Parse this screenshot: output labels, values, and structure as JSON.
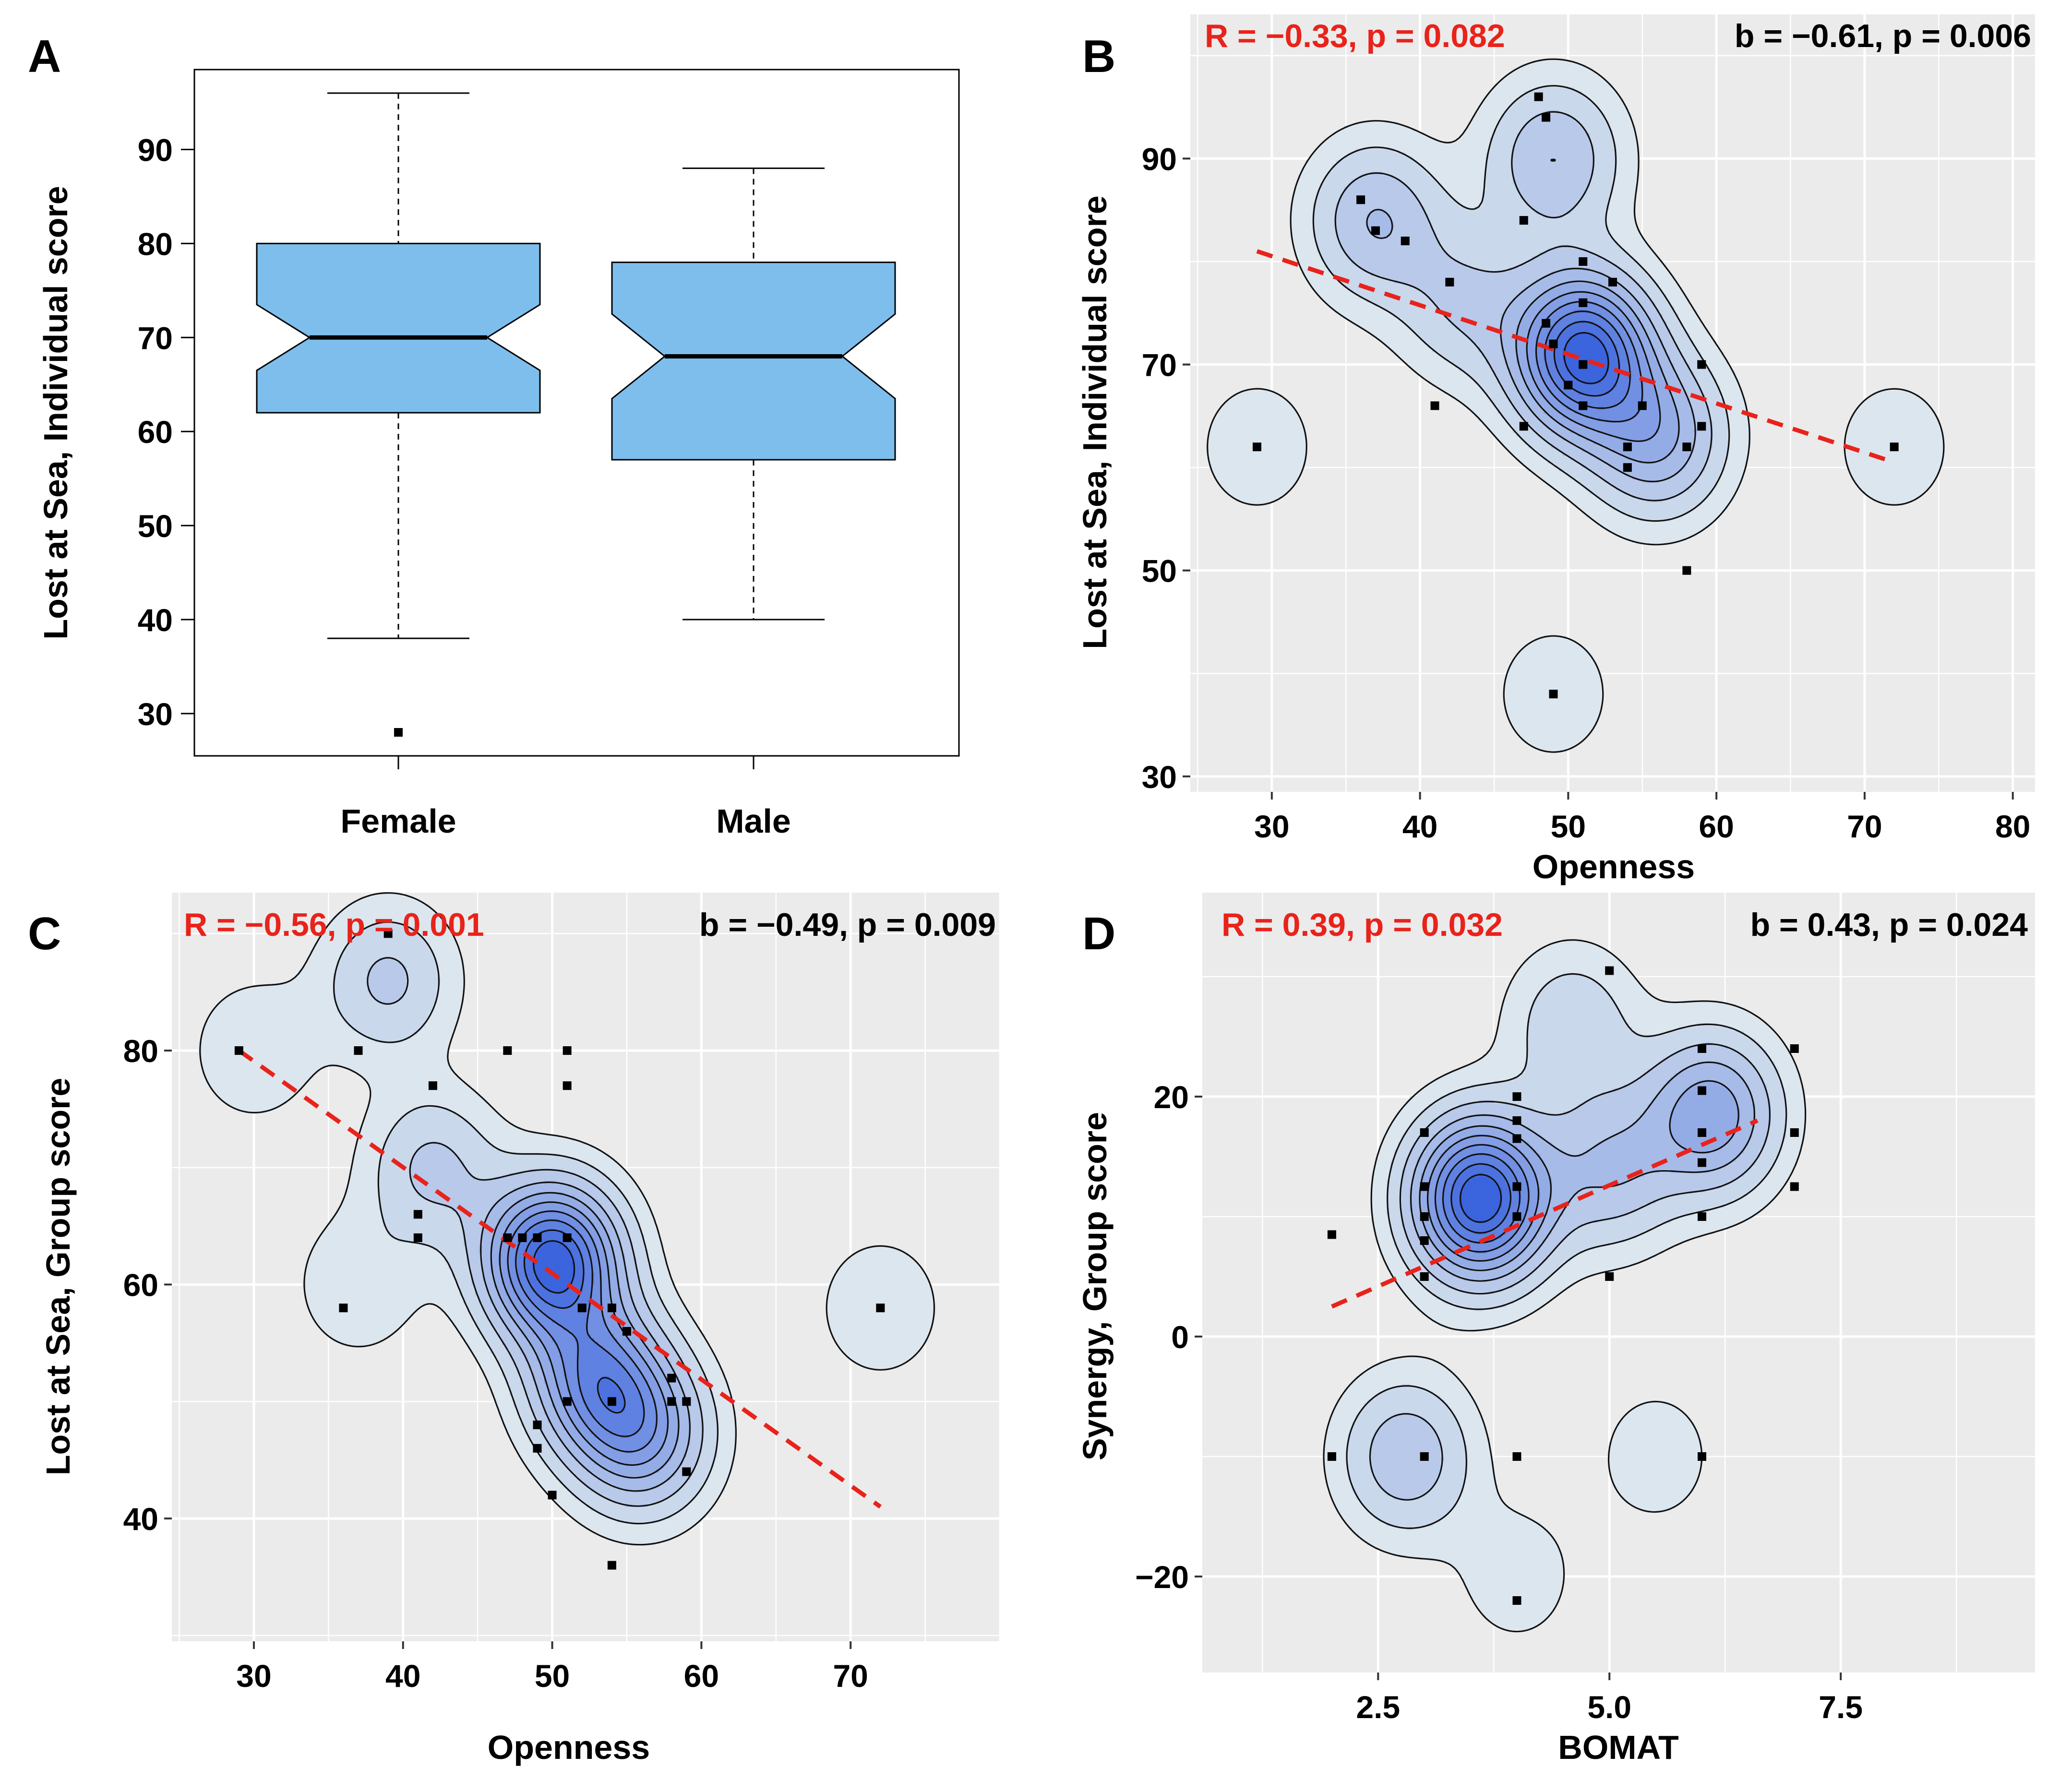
{
  "chart_data": [
    {
      "panel": "A",
      "type": "box",
      "ylabel": "Lost at Sea, Individual score",
      "categories": [
        "Female",
        "Male"
      ],
      "yticks": [
        30,
        40,
        50,
        60,
        70,
        80,
        90
      ],
      "ylim": [
        25.5,
        98.5
      ],
      "series": [
        {
          "name": "Female",
          "min": 38,
          "q1": 62,
          "median": 70,
          "q3": 80,
          "max": 96,
          "notch_low": 66.5,
          "notch_high": 73.5,
          "outliers": [
            28
          ]
        },
        {
          "name": "Male",
          "min": 40,
          "q1": 57,
          "median": 68,
          "q3": 78,
          "max": 88,
          "notch_low": 63.5,
          "notch_high": 72.5,
          "outliers": []
        }
      ],
      "colors": {
        "box": "#7dbeed"
      }
    },
    {
      "panel": "B",
      "type": "scatter",
      "xlabel": "Openness",
      "ylabel": "Lost at Sea, Individual score",
      "xlim": [
        24.5,
        81.5
      ],
      "ylim": [
        28.5,
        104
      ],
      "xticks": [
        30,
        40,
        50,
        60,
        70,
        80
      ],
      "yticks": [
        30,
        50,
        70,
        90
      ],
      "annotation_left": "R = −0.33, p = 0.082",
      "annotation_right": "b = −0.61, p = 0.006",
      "points": [
        [
          29,
          62
        ],
        [
          36,
          86
        ],
        [
          37,
          83
        ],
        [
          39,
          82
        ],
        [
          41,
          66
        ],
        [
          42,
          78
        ],
        [
          47,
          84
        ],
        [
          47,
          64
        ],
        [
          48,
          96
        ],
        [
          48.5,
          94
        ],
        [
          48.5,
          74
        ],
        [
          49,
          72
        ],
        [
          50,
          68
        ],
        [
          51,
          80
        ],
        [
          51,
          76
        ],
        [
          51,
          70
        ],
        [
          51,
          66
        ],
        [
          53,
          78
        ],
        [
          54,
          62
        ],
        [
          54,
          60
        ],
        [
          55,
          66
        ],
        [
          58,
          62
        ],
        [
          58,
          50
        ],
        [
          59,
          70
        ],
        [
          59,
          64
        ],
        [
          72,
          62
        ],
        [
          49,
          38
        ]
      ],
      "fit": {
        "x": [
          29,
          72
        ],
        "y": [
          81,
          60.5
        ]
      },
      "density_centers": [
        [
          51,
          71,
          9
        ],
        [
          56,
          63,
          4
        ],
        [
          49,
          90,
          3
        ],
        [
          37,
          84,
          3
        ],
        [
          43,
          76,
          2
        ],
        [
          29,
          62,
          1
        ],
        [
          72,
          62,
          1
        ],
        [
          49,
          38,
          1
        ]
      ]
    },
    {
      "panel": "C",
      "type": "scatter",
      "xlabel": "Openness",
      "ylabel": "Lost at Sea, Group score",
      "xlim": [
        24.5,
        80
      ],
      "ylim": [
        29.5,
        93.5
      ],
      "xticks": [
        30,
        40,
        50,
        60,
        70
      ],
      "yticks": [
        40,
        60,
        80
      ],
      "annotation_left": "R = −0.56, p = 0.001",
      "annotation_right": "b = −0.49, p = 0.009",
      "points": [
        [
          29,
          80
        ],
        [
          36,
          58
        ],
        [
          37,
          80
        ],
        [
          39,
          90
        ],
        [
          41,
          66
        ],
        [
          41,
          64
        ],
        [
          42,
          77
        ],
        [
          47,
          80
        ],
        [
          47,
          64
        ],
        [
          48,
          64
        ],
        [
          49,
          64
        ],
        [
          49,
          48
        ],
        [
          49,
          46
        ],
        [
          50,
          42
        ],
        [
          51,
          80
        ],
        [
          51,
          77
        ],
        [
          51,
          64
        ],
        [
          51,
          50
        ],
        [
          52,
          58
        ],
        [
          54,
          58
        ],
        [
          54,
          50
        ],
        [
          54,
          36
        ],
        [
          55,
          56
        ],
        [
          58,
          52
        ],
        [
          58,
          50
        ],
        [
          59,
          50
        ],
        [
          59,
          44
        ],
        [
          72,
          58
        ]
      ],
      "fit": {
        "x": [
          29,
          72
        ],
        "y": [
          80,
          41
        ]
      },
      "density_centers": [
        [
          50,
          62,
          8
        ],
        [
          53,
          52,
          5
        ],
        [
          56,
          47,
          4
        ],
        [
          39,
          86,
          2
        ],
        [
          30,
          80,
          1
        ],
        [
          42,
          70,
          2
        ],
        [
          37,
          60,
          1
        ],
        [
          72,
          58,
          1
        ]
      ]
    },
    {
      "panel": "D",
      "type": "scatter",
      "xlabel": "BOMAT",
      "ylabel": "Synergy, Group score",
      "xlim": [
        0.6,
        9.6
      ],
      "ylim": [
        -28,
        37
      ],
      "xticks": [
        2.5,
        5.0,
        7.5
      ],
      "xticklabels": [
        "2.5",
        "5.0",
        "7.5"
      ],
      "yticks": [
        -20,
        0,
        20
      ],
      "annotation_left": "R = 0.39, p = 0.032",
      "annotation_right": "b = 0.43, p = 0.024",
      "points": [
        [
          2,
          8.5
        ],
        [
          3,
          17
        ],
        [
          3,
          12.5
        ],
        [
          3,
          10
        ],
        [
          3,
          8
        ],
        [
          3,
          5
        ],
        [
          4,
          20
        ],
        [
          4,
          18
        ],
        [
          4,
          16.5
        ],
        [
          4,
          12.5
        ],
        [
          4,
          10
        ],
        [
          5,
          30.5
        ],
        [
          5,
          5
        ],
        [
          6,
          24
        ],
        [
          6,
          20.5
        ],
        [
          6,
          17
        ],
        [
          6,
          14.5
        ],
        [
          6,
          10
        ],
        [
          7,
          24
        ],
        [
          7,
          17
        ],
        [
          7,
          12.5
        ],
        [
          2,
          -10
        ],
        [
          3,
          -10
        ],
        [
          4,
          -10
        ],
        [
          6,
          -10
        ],
        [
          4,
          -22
        ]
      ],
      "fit": {
        "x": [
          2,
          6.6
        ],
        "y": [
          2.5,
          18
        ]
      },
      "density_centers": [
        [
          3.6,
          11.5,
          10
        ],
        [
          6.1,
          18.5,
          5
        ],
        [
          5,
          14,
          3
        ],
        [
          4.6,
          26,
          2
        ],
        [
          2.8,
          -10,
          3
        ],
        [
          5.5,
          -10,
          1
        ],
        [
          4,
          -20,
          1
        ]
      ]
    }
  ],
  "panel_labels": [
    "A",
    "B",
    "C",
    "D"
  ],
  "colors": {
    "panel_bg": "#ebebeb",
    "grid": "#ffffff",
    "fit_line": "#e8231b",
    "annotation_red": "#e8231b",
    "density_light": "#dce6ee",
    "density_dark": "#3b64dd"
  }
}
